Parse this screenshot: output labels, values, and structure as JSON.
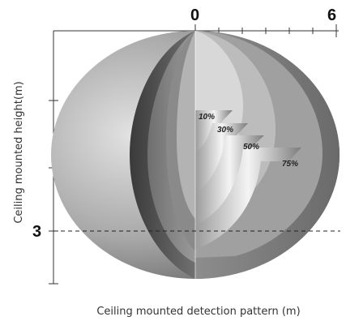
{
  "figure": {
    "axis_top": {
      "start_label": "0",
      "end_label": "6"
    },
    "axis_left": {
      "marker_label": "3"
    },
    "y_axis_title": "Ceiling mounted height(m)",
    "x_axis_title": "Ceiling mounted detection pattern (m)",
    "zones": [
      {
        "label": "10%"
      },
      {
        "label": "30%"
      },
      {
        "label": "50%"
      },
      {
        "label": "75%"
      }
    ],
    "colors": {
      "outer_shell": "#9a9a9a",
      "shell_dark_band": "#5e5e5e",
      "zone_75": "#8c8c8c",
      "zone_50": "#a8a8a8",
      "zone_30": "#c2c2c2",
      "zone_10": "#dadada"
    }
  }
}
